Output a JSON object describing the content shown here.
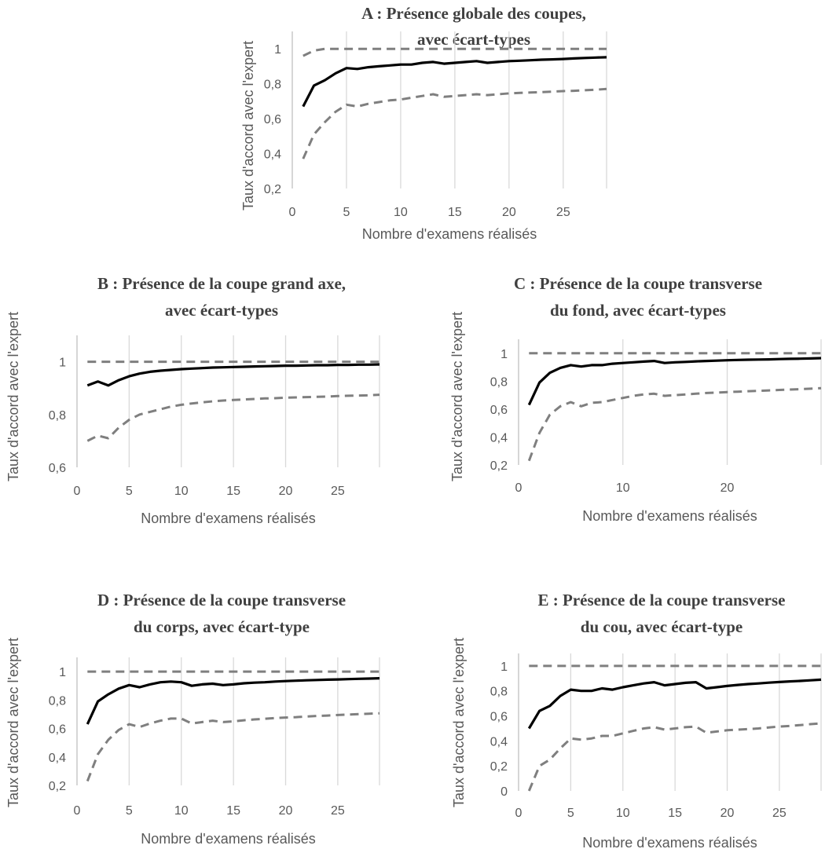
{
  "chart_data": [
    {
      "id": "A",
      "type": "line",
      "title": [
        "A : Présence globale des coupes,",
        "avec écart-types"
      ],
      "xlabel": "Nombre d'examens réalisés",
      "ylabel": "Taux d'accord avec l'expert",
      "xlim": [
        0,
        29
      ],
      "ylim": [
        0.2,
        1.1
      ],
      "xticks": [
        0,
        5,
        10,
        15,
        20,
        25
      ],
      "yticks": [
        0.2,
        0.4,
        0.6,
        0.8,
        1
      ],
      "ytick_labels": [
        "0,2",
        "0,4",
        "0,6",
        "0,8",
        "1"
      ],
      "grid": "vertical",
      "x": [
        1,
        2,
        3,
        4,
        5,
        6,
        7,
        8,
        9,
        10,
        11,
        12,
        13,
        14,
        15,
        16,
        17,
        18,
        19,
        20,
        21,
        22,
        23,
        24,
        25,
        26,
        27,
        28,
        29
      ],
      "series": [
        {
          "style": "mean",
          "values": [
            0.67,
            0.79,
            0.82,
            0.86,
            0.89,
            0.885,
            0.895,
            0.9,
            0.905,
            0.91,
            0.91,
            0.92,
            0.925,
            0.915,
            0.92,
            0.925,
            0.93,
            0.92,
            0.925,
            0.93,
            0.932,
            0.935,
            0.938,
            0.94,
            0.942,
            0.945,
            0.948,
            0.95,
            0.952
          ]
        },
        {
          "style": "upper",
          "values": [
            0.96,
            0.99,
            1,
            1,
            1,
            1,
            1,
            1,
            1,
            1,
            1,
            1,
            1,
            1,
            1,
            1,
            1,
            1,
            1,
            1,
            1,
            1,
            1,
            1,
            1,
            1,
            1,
            1,
            1
          ]
        },
        {
          "style": "lower",
          "values": [
            0.37,
            0.51,
            0.58,
            0.64,
            0.68,
            0.67,
            0.685,
            0.695,
            0.705,
            0.71,
            0.72,
            0.73,
            0.74,
            0.725,
            0.73,
            0.735,
            0.74,
            0.735,
            0.74,
            0.745,
            0.748,
            0.75,
            0.752,
            0.755,
            0.758,
            0.76,
            0.763,
            0.766,
            0.77
          ]
        }
      ]
    },
    {
      "id": "B",
      "type": "line",
      "title": [
        "B : Présence de la coupe grand axe,",
        "avec écart-types"
      ],
      "xlabel": "Nombre d'examens réalisés",
      "ylabel": "Taux d'accord avec l'expert",
      "xlim": [
        0,
        29
      ],
      "ylim": [
        0.6,
        1.1
      ],
      "xticks": [
        0,
        5,
        10,
        15,
        20,
        25
      ],
      "yticks": [
        0.6,
        0.8,
        1
      ],
      "ytick_labels": [
        "0,6",
        "0,8",
        "1"
      ],
      "grid": "vertical",
      "x": [
        1,
        2,
        3,
        4,
        5,
        6,
        7,
        8,
        9,
        10,
        11,
        12,
        13,
        14,
        15,
        16,
        17,
        18,
        19,
        20,
        21,
        22,
        23,
        24,
        25,
        26,
        27,
        28,
        29
      ],
      "series": [
        {
          "style": "mean",
          "values": [
            0.91,
            0.925,
            0.91,
            0.93,
            0.945,
            0.955,
            0.962,
            0.966,
            0.969,
            0.972,
            0.974,
            0.976,
            0.978,
            0.979,
            0.98,
            0.981,
            0.982,
            0.983,
            0.984,
            0.985,
            0.985,
            0.986,
            0.987,
            0.987,
            0.988,
            0.988,
            0.989,
            0.989,
            0.99
          ]
        },
        {
          "style": "upper",
          "values": [
            1,
            1,
            1,
            1,
            1,
            1,
            1,
            1,
            1,
            1,
            1,
            1,
            1,
            1,
            1,
            1,
            1,
            1,
            1,
            1,
            1,
            1,
            1,
            1,
            1,
            1,
            1,
            1,
            1
          ]
        },
        {
          "style": "lower",
          "values": [
            0.7,
            0.72,
            0.71,
            0.75,
            0.78,
            0.8,
            0.81,
            0.82,
            0.83,
            0.837,
            0.842,
            0.846,
            0.85,
            0.853,
            0.855,
            0.857,
            0.859,
            0.861,
            0.862,
            0.864,
            0.865,
            0.866,
            0.867,
            0.868,
            0.87,
            0.871,
            0.872,
            0.873,
            0.875
          ]
        }
      ]
    },
    {
      "id": "C",
      "type": "line",
      "title": [
        "C : Présence de la coupe transverse",
        "du fond, avec écart-types"
      ],
      "xlabel": "Nombre d'examens réalisés",
      "ylabel": "Taux d'accord avec l'expert",
      "xlim": [
        0,
        29
      ],
      "ylim": [
        0.2,
        1.1
      ],
      "xticks": [
        0,
        10,
        20
      ],
      "yticks": [
        0.2,
        0.4,
        0.6,
        0.8,
        1
      ],
      "ytick_labels": [
        "0,2",
        "0,4",
        "0,6",
        "0,8",
        "1"
      ],
      "grid": "vertical",
      "x": [
        1,
        2,
        3,
        4,
        5,
        6,
        7,
        8,
        9,
        10,
        11,
        12,
        13,
        14,
        15,
        16,
        17,
        18,
        19,
        20,
        21,
        22,
        23,
        24,
        25,
        26,
        27,
        28,
        29
      ],
      "series": [
        {
          "style": "mean",
          "values": [
            0.63,
            0.79,
            0.86,
            0.895,
            0.915,
            0.905,
            0.915,
            0.915,
            0.925,
            0.93,
            0.935,
            0.94,
            0.945,
            0.93,
            0.935,
            0.938,
            0.942,
            0.945,
            0.947,
            0.95,
            0.952,
            0.954,
            0.955,
            0.956,
            0.958,
            0.96,
            0.961,
            0.963,
            0.965
          ]
        },
        {
          "style": "upper",
          "values": [
            1,
            1,
            1,
            1,
            1,
            1,
            1,
            1,
            1,
            1,
            1,
            1,
            1,
            1,
            1,
            1,
            1,
            1,
            1,
            1,
            1,
            1,
            1,
            1,
            1,
            1,
            1,
            1,
            1
          ]
        },
        {
          "style": "lower",
          "values": [
            0.23,
            0.43,
            0.56,
            0.62,
            0.65,
            0.62,
            0.645,
            0.65,
            0.665,
            0.68,
            0.695,
            0.705,
            0.71,
            0.695,
            0.7,
            0.705,
            0.71,
            0.715,
            0.718,
            0.722,
            0.725,
            0.728,
            0.731,
            0.734,
            0.737,
            0.74,
            0.743,
            0.746,
            0.75
          ]
        }
      ]
    },
    {
      "id": "D",
      "type": "line",
      "title": [
        "D : Présence de la coupe transverse",
        "du corps, avec écart-type"
      ],
      "xlabel": "Nombre d'examens réalisés",
      "ylabel": "Taux d'accord avec l'expert",
      "xlim": [
        0,
        29
      ],
      "ylim": [
        0.2,
        1.1
      ],
      "xticks": [
        0,
        5,
        10,
        15,
        20,
        25
      ],
      "yticks": [
        0.2,
        0.4,
        0.6,
        0.8,
        1
      ],
      "ytick_labels": [
        "0,2",
        "0,4",
        "0,6",
        "0,8",
        "1"
      ],
      "grid": "vertical",
      "x": [
        1,
        2,
        3,
        4,
        5,
        6,
        7,
        8,
        9,
        10,
        11,
        12,
        13,
        14,
        15,
        16,
        17,
        18,
        19,
        20,
        21,
        22,
        23,
        24,
        25,
        26,
        27,
        28,
        29
      ],
      "series": [
        {
          "style": "mean",
          "values": [
            0.63,
            0.79,
            0.84,
            0.88,
            0.905,
            0.89,
            0.91,
            0.925,
            0.93,
            0.925,
            0.9,
            0.91,
            0.915,
            0.905,
            0.91,
            0.918,
            0.922,
            0.925,
            0.93,
            0.933,
            0.936,
            0.939,
            0.941,
            0.943,
            0.945,
            0.947,
            0.949,
            0.951,
            0.953
          ]
        },
        {
          "style": "upper",
          "values": [
            1,
            1,
            1,
            1,
            1,
            1,
            1,
            1,
            1,
            1,
            1,
            1,
            1,
            1,
            1,
            1,
            1,
            1,
            1,
            1,
            1,
            1,
            1,
            1,
            1,
            1,
            1,
            1,
            1
          ]
        },
        {
          "style": "lower",
          "values": [
            0.23,
            0.42,
            0.52,
            0.59,
            0.63,
            0.61,
            0.635,
            0.655,
            0.67,
            0.67,
            0.635,
            0.645,
            0.655,
            0.645,
            0.65,
            0.658,
            0.664,
            0.668,
            0.673,
            0.677,
            0.68,
            0.684,
            0.688,
            0.691,
            0.695,
            0.698,
            0.701,
            0.704,
            0.707
          ]
        }
      ]
    },
    {
      "id": "E",
      "type": "line",
      "title": [
        "E : Présence de la coupe transverse",
        "du cou, avec écart-type"
      ],
      "xlabel": "Nombre d'examens réalisés",
      "ylabel": "Taux d'accord avec l'expert",
      "xlim": [
        0,
        29
      ],
      "ylim": [
        0,
        1.1
      ],
      "xticks": [
        0,
        5,
        10,
        15,
        20,
        25
      ],
      "yticks": [
        0,
        0.2,
        0.4,
        0.6,
        0.8,
        1
      ],
      "ytick_labels": [
        "0",
        "0,2",
        "0,4",
        "0,6",
        "0,8",
        "1"
      ],
      "grid": "vertical",
      "x": [
        1,
        2,
        3,
        4,
        5,
        6,
        7,
        8,
        9,
        10,
        11,
        12,
        13,
        14,
        15,
        16,
        17,
        18,
        19,
        20,
        21,
        22,
        23,
        24,
        25,
        26,
        27,
        28,
        29
      ],
      "series": [
        {
          "style": "mean",
          "values": [
            0.5,
            0.64,
            0.68,
            0.76,
            0.81,
            0.8,
            0.8,
            0.82,
            0.81,
            0.83,
            0.845,
            0.86,
            0.87,
            0.845,
            0.855,
            0.865,
            0.87,
            0.82,
            0.83,
            0.84,
            0.848,
            0.855,
            0.86,
            0.866,
            0.871,
            0.876,
            0.88,
            0.885,
            0.89
          ]
        },
        {
          "style": "upper",
          "values": [
            1,
            1,
            1,
            1,
            1,
            1,
            1,
            1,
            1,
            1,
            1,
            1,
            1,
            1,
            1,
            1,
            1,
            1,
            1,
            1,
            1,
            1,
            1,
            1,
            1,
            1,
            1,
            1,
            1
          ]
        },
        {
          "style": "lower",
          "values": [
            0,
            0.2,
            0.25,
            0.34,
            0.42,
            0.41,
            0.42,
            0.44,
            0.44,
            0.46,
            0.48,
            0.5,
            0.51,
            0.49,
            0.5,
            0.51,
            0.515,
            0.465,
            0.475,
            0.485,
            0.49,
            0.495,
            0.5,
            0.508,
            0.515,
            0.52,
            0.527,
            0.534,
            0.54
          ]
        }
      ]
    }
  ]
}
